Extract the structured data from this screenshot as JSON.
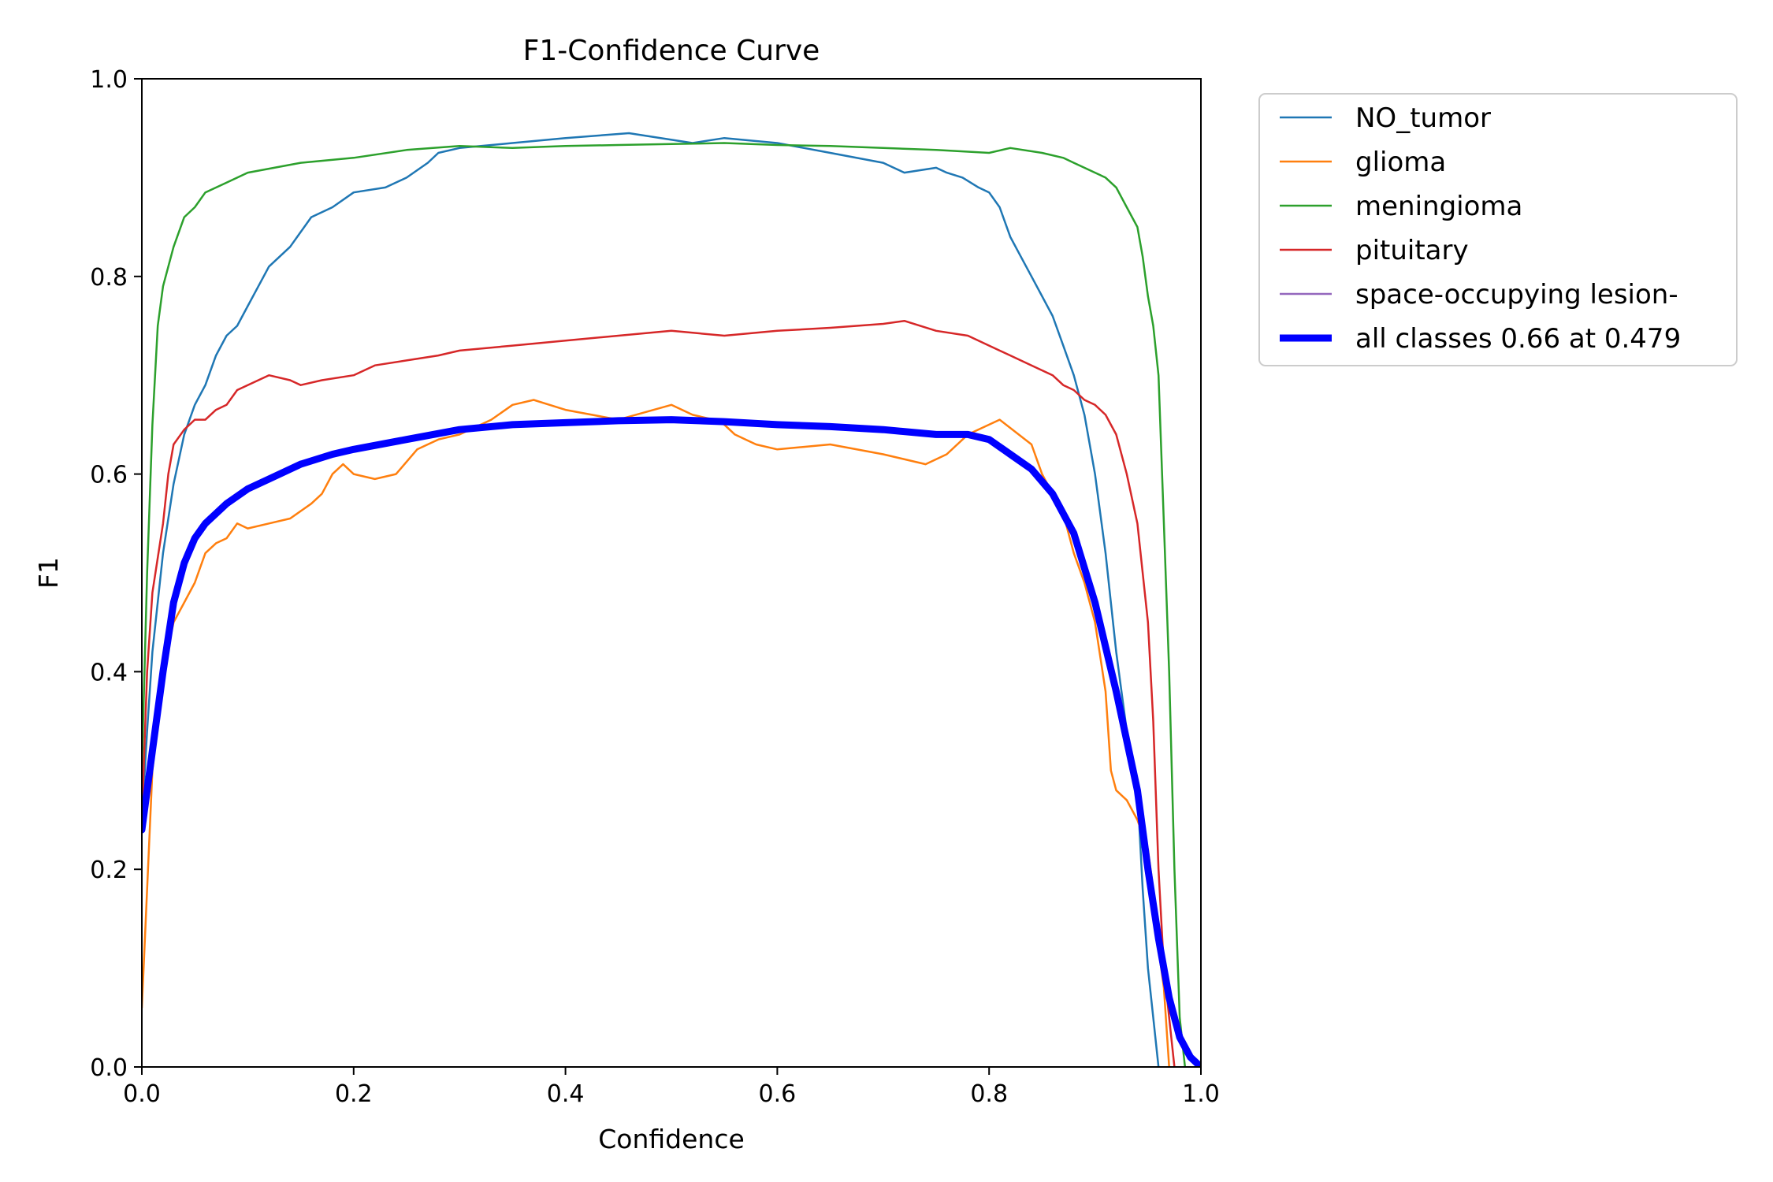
{
  "chart_data": {
    "type": "line",
    "title": "F1-Confidence Curve",
    "xlabel": "Confidence",
    "ylabel": "F1",
    "xlim": [
      0.0,
      1.0
    ],
    "ylim": [
      0.0,
      1.0
    ],
    "xticks": [
      "0.0",
      "0.2",
      "0.4",
      "0.6",
      "0.8",
      "1.0"
    ],
    "yticks": [
      "0.0",
      "0.2",
      "0.4",
      "0.6",
      "0.8",
      "1.0"
    ],
    "grid": false,
    "legend_position": "outside top-right",
    "series": [
      {
        "name": "NO_tumor",
        "color": "#1f77b4",
        "bold": false,
        "points": [
          [
            0.0,
            0.25
          ],
          [
            0.005,
            0.34
          ],
          [
            0.01,
            0.42
          ],
          [
            0.02,
            0.52
          ],
          [
            0.03,
            0.59
          ],
          [
            0.04,
            0.64
          ],
          [
            0.05,
            0.67
          ],
          [
            0.06,
            0.69
          ],
          [
            0.07,
            0.72
          ],
          [
            0.08,
            0.74
          ],
          [
            0.09,
            0.75
          ],
          [
            0.1,
            0.77
          ],
          [
            0.12,
            0.81
          ],
          [
            0.14,
            0.83
          ],
          [
            0.16,
            0.86
          ],
          [
            0.18,
            0.87
          ],
          [
            0.2,
            0.885
          ],
          [
            0.23,
            0.89
          ],
          [
            0.25,
            0.9
          ],
          [
            0.27,
            0.915
          ],
          [
            0.28,
            0.925
          ],
          [
            0.3,
            0.93
          ],
          [
            0.35,
            0.935
          ],
          [
            0.4,
            0.94
          ],
          [
            0.46,
            0.945
          ],
          [
            0.52,
            0.935
          ],
          [
            0.55,
            0.94
          ],
          [
            0.6,
            0.935
          ],
          [
            0.65,
            0.925
          ],
          [
            0.7,
            0.915
          ],
          [
            0.71,
            0.91
          ],
          [
            0.72,
            0.905
          ],
          [
            0.75,
            0.91
          ],
          [
            0.76,
            0.905
          ],
          [
            0.775,
            0.9
          ],
          [
            0.79,
            0.89
          ],
          [
            0.8,
            0.885
          ],
          [
            0.81,
            0.87
          ],
          [
            0.82,
            0.84
          ],
          [
            0.83,
            0.82
          ],
          [
            0.84,
            0.8
          ],
          [
            0.85,
            0.78
          ],
          [
            0.86,
            0.76
          ],
          [
            0.87,
            0.73
          ],
          [
            0.88,
            0.7
          ],
          [
            0.89,
            0.66
          ],
          [
            0.9,
            0.6
          ],
          [
            0.91,
            0.52
          ],
          [
            0.92,
            0.42
          ],
          [
            0.93,
            0.34
          ],
          [
            0.94,
            0.28
          ],
          [
            0.945,
            0.18
          ],
          [
            0.95,
            0.1
          ],
          [
            0.955,
            0.05
          ],
          [
            0.96,
            0.0
          ]
        ]
      },
      {
        "name": "glioma",
        "color": "#ff7f0e",
        "bold": false,
        "points": [
          [
            0.0,
            0.06
          ],
          [
            0.005,
            0.18
          ],
          [
            0.01,
            0.3
          ],
          [
            0.02,
            0.4
          ],
          [
            0.03,
            0.45
          ],
          [
            0.04,
            0.47
          ],
          [
            0.05,
            0.49
          ],
          [
            0.06,
            0.52
          ],
          [
            0.07,
            0.53
          ],
          [
            0.08,
            0.535
          ],
          [
            0.09,
            0.55
          ],
          [
            0.1,
            0.545
          ],
          [
            0.12,
            0.55
          ],
          [
            0.14,
            0.555
          ],
          [
            0.16,
            0.57
          ],
          [
            0.17,
            0.58
          ],
          [
            0.18,
            0.6
          ],
          [
            0.19,
            0.61
          ],
          [
            0.2,
            0.6
          ],
          [
            0.22,
            0.595
          ],
          [
            0.24,
            0.6
          ],
          [
            0.26,
            0.625
          ],
          [
            0.28,
            0.635
          ],
          [
            0.3,
            0.64
          ],
          [
            0.33,
            0.655
          ],
          [
            0.35,
            0.67
          ],
          [
            0.37,
            0.675
          ],
          [
            0.4,
            0.665
          ],
          [
            0.45,
            0.655
          ],
          [
            0.5,
            0.67
          ],
          [
            0.52,
            0.66
          ],
          [
            0.54,
            0.655
          ],
          [
            0.55,
            0.65
          ],
          [
            0.56,
            0.64
          ],
          [
            0.57,
            0.635
          ],
          [
            0.58,
            0.63
          ],
          [
            0.6,
            0.625
          ],
          [
            0.65,
            0.63
          ],
          [
            0.7,
            0.62
          ],
          [
            0.74,
            0.61
          ],
          [
            0.76,
            0.62
          ],
          [
            0.78,
            0.64
          ],
          [
            0.81,
            0.655
          ],
          [
            0.84,
            0.63
          ],
          [
            0.85,
            0.6
          ],
          [
            0.86,
            0.58
          ],
          [
            0.87,
            0.56
          ],
          [
            0.88,
            0.52
          ],
          [
            0.89,
            0.49
          ],
          [
            0.9,
            0.45
          ],
          [
            0.91,
            0.38
          ],
          [
            0.915,
            0.3
          ],
          [
            0.92,
            0.28
          ],
          [
            0.93,
            0.27
          ],
          [
            0.94,
            0.25
          ],
          [
            0.95,
            0.22
          ],
          [
            0.955,
            0.18
          ],
          [
            0.96,
            0.12
          ],
          [
            0.965,
            0.08
          ],
          [
            0.97,
            0.0
          ]
        ]
      },
      {
        "name": "meningioma",
        "color": "#2ca02c",
        "bold": false,
        "points": [
          [
            0.0,
            0.3
          ],
          [
            0.005,
            0.5
          ],
          [
            0.01,
            0.65
          ],
          [
            0.015,
            0.75
          ],
          [
            0.02,
            0.79
          ],
          [
            0.03,
            0.83
          ],
          [
            0.04,
            0.86
          ],
          [
            0.05,
            0.87
          ],
          [
            0.06,
            0.885
          ],
          [
            0.08,
            0.895
          ],
          [
            0.1,
            0.905
          ],
          [
            0.15,
            0.915
          ],
          [
            0.2,
            0.92
          ],
          [
            0.25,
            0.928
          ],
          [
            0.3,
            0.932
          ],
          [
            0.35,
            0.93
          ],
          [
            0.4,
            0.932
          ],
          [
            0.45,
            0.933
          ],
          [
            0.5,
            0.934
          ],
          [
            0.55,
            0.935
          ],
          [
            0.6,
            0.933
          ],
          [
            0.65,
            0.932
          ],
          [
            0.7,
            0.93
          ],
          [
            0.75,
            0.928
          ],
          [
            0.8,
            0.925
          ],
          [
            0.82,
            0.93
          ],
          [
            0.85,
            0.925
          ],
          [
            0.87,
            0.92
          ],
          [
            0.88,
            0.915
          ],
          [
            0.89,
            0.91
          ],
          [
            0.9,
            0.905
          ],
          [
            0.91,
            0.9
          ],
          [
            0.92,
            0.89
          ],
          [
            0.93,
            0.87
          ],
          [
            0.94,
            0.85
          ],
          [
            0.945,
            0.82
          ],
          [
            0.95,
            0.78
          ],
          [
            0.955,
            0.75
          ],
          [
            0.96,
            0.7
          ],
          [
            0.965,
            0.55
          ],
          [
            0.97,
            0.4
          ],
          [
            0.975,
            0.2
          ],
          [
            0.98,
            0.05
          ],
          [
            0.985,
            0.0
          ]
        ]
      },
      {
        "name": "pituitary",
        "color": "#d62728",
        "bold": false,
        "points": [
          [
            0.0,
            0.25
          ],
          [
            0.005,
            0.4
          ],
          [
            0.01,
            0.48
          ],
          [
            0.02,
            0.55
          ],
          [
            0.025,
            0.6
          ],
          [
            0.03,
            0.63
          ],
          [
            0.04,
            0.645
          ],
          [
            0.05,
            0.655
          ],
          [
            0.06,
            0.655
          ],
          [
            0.07,
            0.665
          ],
          [
            0.08,
            0.67
          ],
          [
            0.09,
            0.685
          ],
          [
            0.1,
            0.69
          ],
          [
            0.12,
            0.7
          ],
          [
            0.14,
            0.695
          ],
          [
            0.15,
            0.69
          ],
          [
            0.17,
            0.695
          ],
          [
            0.2,
            0.7
          ],
          [
            0.22,
            0.71
          ],
          [
            0.25,
            0.715
          ],
          [
            0.28,
            0.72
          ],
          [
            0.3,
            0.725
          ],
          [
            0.35,
            0.73
          ],
          [
            0.4,
            0.735
          ],
          [
            0.45,
            0.74
          ],
          [
            0.5,
            0.745
          ],
          [
            0.55,
            0.74
          ],
          [
            0.6,
            0.745
          ],
          [
            0.65,
            0.748
          ],
          [
            0.7,
            0.752
          ],
          [
            0.72,
            0.755
          ],
          [
            0.75,
            0.745
          ],
          [
            0.78,
            0.74
          ],
          [
            0.8,
            0.73
          ],
          [
            0.82,
            0.72
          ],
          [
            0.84,
            0.71
          ],
          [
            0.86,
            0.7
          ],
          [
            0.87,
            0.69
          ],
          [
            0.88,
            0.685
          ],
          [
            0.89,
            0.675
          ],
          [
            0.9,
            0.67
          ],
          [
            0.91,
            0.66
          ],
          [
            0.92,
            0.64
          ],
          [
            0.93,
            0.6
          ],
          [
            0.94,
            0.55
          ],
          [
            0.95,
            0.45
          ],
          [
            0.955,
            0.35
          ],
          [
            0.96,
            0.2
          ],
          [
            0.965,
            0.1
          ],
          [
            0.97,
            0.05
          ],
          [
            0.975,
            0.0
          ]
        ]
      },
      {
        "name": "space-occupying lesion-",
        "color": "#9467bd",
        "bold": false,
        "points": []
      },
      {
        "name": "all classes 0.66 at 0.479",
        "color": "#0000ff",
        "bold": true,
        "points": [
          [
            0.0,
            0.24
          ],
          [
            0.01,
            0.32
          ],
          [
            0.02,
            0.4
          ],
          [
            0.03,
            0.47
          ],
          [
            0.04,
            0.51
          ],
          [
            0.05,
            0.535
          ],
          [
            0.06,
            0.55
          ],
          [
            0.08,
            0.57
          ],
          [
            0.1,
            0.585
          ],
          [
            0.12,
            0.595
          ],
          [
            0.15,
            0.61
          ],
          [
            0.18,
            0.62
          ],
          [
            0.2,
            0.625
          ],
          [
            0.25,
            0.635
          ],
          [
            0.3,
            0.645
          ],
          [
            0.35,
            0.65
          ],
          [
            0.4,
            0.652
          ],
          [
            0.45,
            0.654
          ],
          [
            0.5,
            0.655
          ],
          [
            0.55,
            0.653
          ],
          [
            0.6,
            0.65
          ],
          [
            0.65,
            0.648
          ],
          [
            0.7,
            0.645
          ],
          [
            0.75,
            0.64
          ],
          [
            0.78,
            0.64
          ],
          [
            0.8,
            0.635
          ],
          [
            0.82,
            0.62
          ],
          [
            0.84,
            0.605
          ],
          [
            0.86,
            0.58
          ],
          [
            0.88,
            0.54
          ],
          [
            0.9,
            0.47
          ],
          [
            0.92,
            0.38
          ],
          [
            0.94,
            0.28
          ],
          [
            0.95,
            0.2
          ],
          [
            0.96,
            0.13
          ],
          [
            0.97,
            0.07
          ],
          [
            0.98,
            0.03
          ],
          [
            0.99,
            0.01
          ],
          [
            1.0,
            0.0
          ]
        ]
      }
    ]
  }
}
